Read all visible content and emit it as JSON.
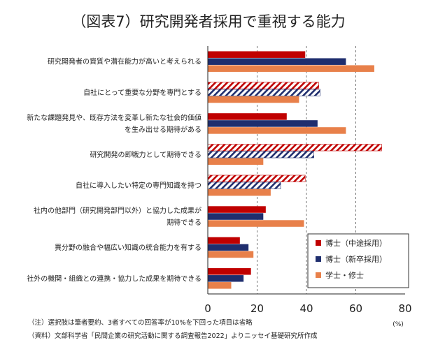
{
  "colors": {
    "phd_mid": "#c00000",
    "phd_new": "#1f2e6e",
    "grad": "#e8804a",
    "grid": "#555555",
    "axis": "#222222"
  },
  "chart_data": {
    "type": "bar",
    "orientation": "horizontal",
    "title": "（図表7）研究開発者採用で重視する能力",
    "unit_label": "(%)",
    "xlim": [
      0,
      80
    ],
    "xticks": [
      0,
      20,
      40,
      60,
      80
    ],
    "grid": "dashed vertical at 20, 40, 60",
    "legend_position": "bottom-right",
    "categories": [
      [
        "研究開発者の資質や潜在能力が高いと考えられる"
      ],
      [
        "自社にとって重要な分野を専門とする"
      ],
      [
        "新たな課題発見や、既存方法を変革し新たな社会的価値",
        "を生み出せる期待がある"
      ],
      [
        "研究開発の即戦力として期待できる"
      ],
      [
        "自社に導入したい特定の専門知識を持つ"
      ],
      [
        "社内の他部門（研究開発部門以外）と協力した成果が",
        "期待できる"
      ],
      [
        "異分野の融合や幅広い知識の統合能力を有する"
      ],
      [
        "社外の機関・組織との連携・協力した成果を期待できる"
      ]
    ],
    "series": [
      {
        "name": "博士（中途採用）",
        "key": "phd_mid",
        "values": [
          39.5,
          45,
          32,
          70.5,
          39.5,
          23.5,
          13,
          17.5
        ],
        "hatched": [
          false,
          true,
          false,
          true,
          true,
          false,
          false,
          false
        ]
      },
      {
        "name": "博士（新卒採用）",
        "key": "phd_new",
        "values": [
          56,
          45.5,
          44.5,
          43,
          29.5,
          22.5,
          16.5,
          14.5
        ],
        "hatched": [
          false,
          true,
          false,
          true,
          true,
          false,
          false,
          false
        ]
      },
      {
        "name": "学士・修士",
        "key": "grad",
        "values": [
          67.5,
          37,
          56,
          22.5,
          25.5,
          39,
          18.5,
          9.5
        ],
        "hatched": [
          false,
          false,
          false,
          false,
          false,
          false,
          false,
          false
        ]
      }
    ]
  },
  "notes": [
    "（注）選択肢は筆者要約、3者すべての回答率が10%を下回った項目は省略",
    "（資料）文部科学省「民間企業の研究活動に関する調査報告2022」よりニッセイ基礎研究所作成"
  ]
}
